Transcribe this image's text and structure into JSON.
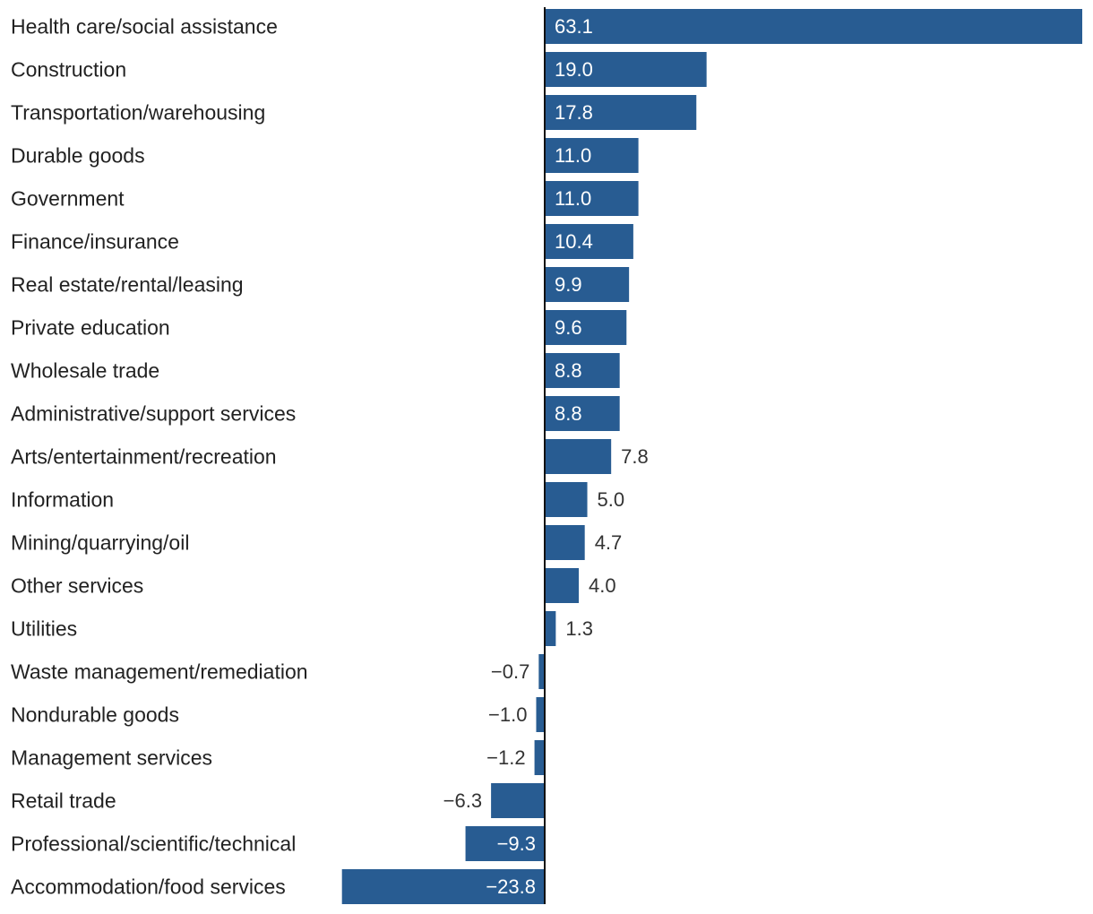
{
  "chart_data": {
    "type": "bar",
    "orientation": "horizontal",
    "categories": [
      "Health care/social assistance",
      "Construction",
      "Transportation/warehousing",
      "Durable goods",
      "Government",
      "Finance/insurance",
      "Real estate/rental/leasing",
      "Private education",
      "Wholesale trade",
      "Administrative/support services",
      "Arts/entertainment/recreation",
      "Information",
      "Mining/quarrying/oil",
      "Other services",
      "Utilities",
      "Waste management/remediation",
      "Nondurable goods",
      "Management services",
      "Retail trade",
      "Professional/scientific/technical",
      "Accommodation/food services"
    ],
    "values": [
      63.1,
      19.0,
      17.8,
      11.0,
      11.0,
      10.4,
      9.9,
      9.6,
      8.8,
      8.8,
      7.8,
      5.0,
      4.7,
      4.0,
      1.3,
      -0.7,
      -1.0,
      -1.2,
      -6.3,
      -9.3,
      -23.8
    ],
    "value_labels": [
      "63.1",
      "19.0",
      "17.8",
      "11.0",
      "11.0",
      "10.4",
      "9.9",
      "9.6",
      "8.8",
      "8.8",
      "7.8",
      "5.0",
      "4.7",
      "4.0",
      "1.3",
      "−0.7",
      "−1.0",
      "−1.2",
      "−6.3",
      "−9.3",
      "−23.8"
    ],
    "title": "",
    "xlabel": "",
    "ylabel": "",
    "xlim": [
      -23.8,
      63.1
    ],
    "grid": false,
    "legend": "none",
    "colors": {
      "bar": "#285c92",
      "axis": "#111111",
      "label_inside": "#ffffff",
      "label_outside": "#333333",
      "category_text": "#222222"
    }
  }
}
